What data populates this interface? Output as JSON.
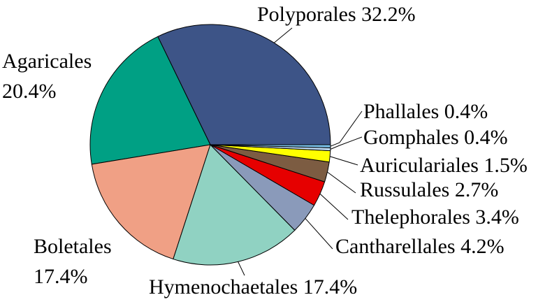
{
  "chart_data": {
    "type": "pie",
    "slices": [
      {
        "name": "Polyporales",
        "value": 32.2,
        "label": "Polyporales 32.2%",
        "color": "#3d5487"
      },
      {
        "name": "Agaricales",
        "value": 20.4,
        "label_lines": [
          "Agaricales",
          "20.4%"
        ],
        "color": "#00a084"
      },
      {
        "name": "Boletales",
        "value": 17.4,
        "label_lines": [
          "Boletales",
          "17.4%"
        ],
        "color": "#f0a085"
      },
      {
        "name": "Hymenochaetales",
        "value": 17.4,
        "label": "Hymenochaetales 17.4%",
        "color": "#90d2c2"
      },
      {
        "name": "Cantharellales",
        "value": 4.2,
        "label": "Cantharellales 4.2%",
        "color": "#8a9aba"
      },
      {
        "name": "Thelephorales",
        "value": 3.4,
        "label": "Thelephorales 3.4%",
        "color": "#e60000"
      },
      {
        "name": "Russulales",
        "value": 2.7,
        "label": "Russulales 2.7%",
        "color": "#7c5c42"
      },
      {
        "name": "Auriculariales",
        "value": 1.5,
        "label": "Auriculariales 1.5%",
        "color": "#ffff00"
      },
      {
        "name": "Gomphales",
        "value": 0.4,
        "label": "Gomphales 0.4%",
        "color": "#bcd8f0"
      },
      {
        "name": "Phallales",
        "value": 0.4,
        "label": "Phallales 0.4%",
        "color": "#78bfe8"
      }
    ]
  }
}
